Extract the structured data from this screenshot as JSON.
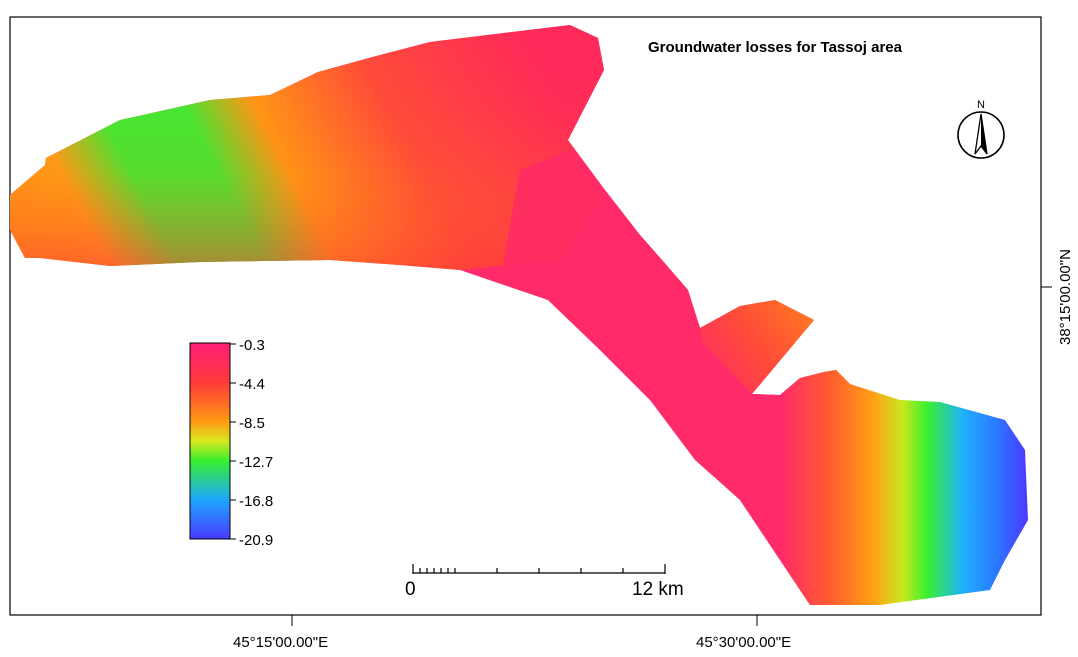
{
  "map": {
    "title": "Groundwater losses for Tassoj area",
    "north_label": "N",
    "longitude_labels": [
      "45°15'00.00\"E",
      "45°30'00.00\"E"
    ],
    "latitude_label": "38°15'00.00\"N",
    "scale": {
      "start_label": "0",
      "end_label": "12 km"
    },
    "legend": {
      "values": [
        "-0.3",
        "-4.4",
        "-8.5",
        "-12.7",
        "-16.8",
        "-20.9"
      ],
      "colors": [
        "#ff1e78",
        "#ff3a3a",
        "#ff9a14",
        "#38ef2e",
        "#1ea6ff",
        "#4a3aff"
      ]
    },
    "surface_colors": {
      "high": "#ff1e78",
      "mid_high": "#ff4040",
      "mid": "#ff9a14",
      "mid_low": "#3af031",
      "low": "#1eb0ff",
      "lowest": "#4a3cff"
    }
  }
}
